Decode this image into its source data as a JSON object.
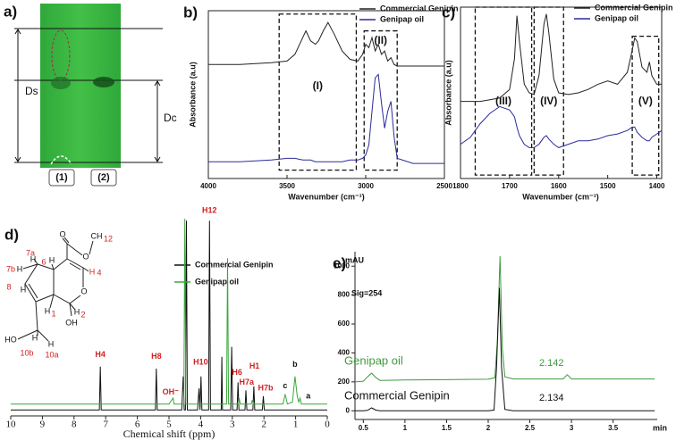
{
  "tlc": {
    "panel": "a)",
    "ds": "Ds",
    "dc": "Dc",
    "lanes": [
      "(1)",
      "(2)"
    ]
  },
  "structure": {
    "labels": [
      "O",
      "O",
      "CH",
      "12",
      "6",
      "H",
      "H",
      "4",
      "7a",
      "H",
      "7b",
      "H",
      "8",
      "H",
      "H",
      "1",
      "O",
      "H",
      "2",
      "OH",
      "HO",
      "H",
      "10b",
      "H",
      "10a"
    ]
  },
  "chart_data": [
    {
      "type": "line",
      "panel": "b)",
      "xlabel": "Wavenumber (cm⁻¹)",
      "ylabel": "Absorbance (a.u)",
      "xlim": [
        4000,
        2500
      ],
      "xticks": [
        4000,
        3500,
        3000,
        2500
      ],
      "ylim": [
        0,
        100
      ],
      "axes": "box",
      "series": [
        {
          "name": "Commercial Genipin",
          "color": "#222222",
          "x": [
            4000,
            3800,
            3600,
            3500,
            3450,
            3400,
            3380,
            3350,
            3320,
            3300,
            3270,
            3240,
            3200,
            3150,
            3100,
            3050,
            3020,
            3000,
            2980,
            2960,
            2940,
            2920,
            2900,
            2880,
            2860,
            2840,
            2820,
            2800,
            2700,
            2600,
            2500
          ],
          "values": [
            68,
            68,
            69,
            70,
            74,
            84,
            88,
            82,
            80,
            82,
            88,
            93,
            86,
            76,
            71,
            70,
            74,
            80,
            78,
            84,
            76,
            80,
            74,
            76,
            70,
            72,
            68,
            67,
            67,
            67,
            67
          ]
        },
        {
          "name": "Genipap oil",
          "color": "#2b2b9a",
          "x": [
            4000,
            3800,
            3600,
            3500,
            3450,
            3400,
            3380,
            3350,
            3320,
            3300,
            3270,
            3240,
            3200,
            3150,
            3100,
            3050,
            3020,
            3000,
            2980,
            2960,
            2940,
            2920,
            2900,
            2880,
            2860,
            2840,
            2820,
            2800,
            2700,
            2600,
            2500
          ],
          "values": [
            10,
            10,
            11,
            12,
            12,
            11,
            11,
            11,
            10,
            10,
            10,
            10,
            10,
            10,
            11,
            11,
            12,
            14,
            20,
            40,
            60,
            62,
            45,
            30,
            40,
            46,
            25,
            12,
            9,
            9,
            9
          ]
        }
      ],
      "regions": [
        {
          "label": "(I)",
          "from": 3550,
          "to": 3060,
          "top": 98,
          "bottom": 5,
          "label_y": 55
        },
        {
          "label": "(II)",
          "from": 3010,
          "to": 2800,
          "top": 88,
          "bottom": 5,
          "label_y": 82
        }
      ]
    },
    {
      "type": "line",
      "panel": "c)",
      "xlabel": "Wavenumber (cm⁻¹)",
      "ylabel": "Absorbance (a.u)",
      "xlim": [
        1800,
        1390
      ],
      "xticks": [
        1800,
        1700,
        1600,
        1500,
        1400
      ],
      "ylim": [
        0,
        100
      ],
      "axes": "box",
      "series": [
        {
          "name": "Commercial Genipin",
          "color": "#222222",
          "x": [
            1800,
            1780,
            1760,
            1740,
            1720,
            1700,
            1690,
            1685,
            1680,
            1670,
            1660,
            1650,
            1640,
            1630,
            1625,
            1620,
            1610,
            1600,
            1580,
            1560,
            1540,
            1520,
            1500,
            1480,
            1460,
            1450,
            1445,
            1440,
            1430,
            1420,
            1415,
            1410,
            1400,
            1390
          ],
          "values": [
            45,
            45,
            45,
            46,
            47,
            52,
            70,
            95,
            80,
            55,
            50,
            49,
            60,
            90,
            96,
            85,
            58,
            50,
            49,
            50,
            52,
            55,
            57,
            55,
            62,
            75,
            82,
            80,
            65,
            62,
            68,
            60,
            55,
            55
          ]
        },
        {
          "name": "Genipap oil",
          "color": "#2b2b9a",
          "x": [
            1800,
            1780,
            1760,
            1740,
            1720,
            1700,
            1690,
            1685,
            1680,
            1670,
            1660,
            1650,
            1640,
            1630,
            1625,
            1620,
            1610,
            1600,
            1580,
            1560,
            1540,
            1520,
            1500,
            1480,
            1460,
            1450,
            1445,
            1440,
            1430,
            1420,
            1415,
            1410,
            1400,
            1390
          ],
          "values": [
            20,
            24,
            32,
            38,
            42,
            40,
            36,
            30,
            25,
            20,
            18,
            18,
            20,
            24,
            25,
            23,
            20,
            18,
            20,
            22,
            22,
            23,
            25,
            26,
            28,
            30,
            30,
            27,
            24,
            22,
            22,
            24,
            26,
            28
          ]
        }
      ],
      "regions": [
        {
          "label": "(III)",
          "from": 1770,
          "to": 1655,
          "top": 100,
          "bottom": 2,
          "label_y": 45
        },
        {
          "label": "(IV)",
          "from": 1650,
          "to": 1590,
          "top": 100,
          "bottom": 2,
          "label_y": 45
        },
        {
          "label": "(V)",
          "from": 1450,
          "to": 1396,
          "top": 83,
          "bottom": 2,
          "label_y": 45
        }
      ]
    },
    {
      "type": "line",
      "panel": "d)",
      "xlabel": "Chemical shift (ppm)",
      "xlim": [
        10,
        0
      ],
      "xticks": [
        10,
        9,
        8,
        7,
        6,
        5,
        4,
        3,
        2,
        1,
        0
      ],
      "ylim": [
        0,
        100
      ],
      "axes": "bottom",
      "series": [
        {
          "name": "Commercial Genipin",
          "color": "#111111",
          "x": [
            10,
            8,
            7.2,
            7.17,
            7.14,
            6,
            5.43,
            5.4,
            5.37,
            4.6,
            4.55,
            4.52,
            4.48,
            4.45,
            4.42,
            4.1,
            4.05,
            4.02,
            3.99,
            3.96,
            3.93,
            3.75,
            3.72,
            3.69,
            3.5,
            3.35,
            3.33,
            3.31,
            3.05,
            3.02,
            2.99,
            2.85,
            2.82,
            2.79,
            2.6,
            2.57,
            2.54,
            2.35,
            2.32,
            2.29,
            2.05,
            2.02,
            1.99,
            1,
            0
          ],
          "values": [
            3,
            3,
            3,
            25,
            3,
            3,
            3,
            24,
            3,
            3,
            20,
            3,
            3,
            99,
            3,
            3,
            14,
            3,
            20,
            3,
            3,
            3,
            99,
            3,
            3,
            3,
            30,
            3,
            3,
            35,
            3,
            3,
            17,
            3,
            3,
            13,
            3,
            3,
            15,
            3,
            3,
            10,
            3,
            3,
            3
          ]
        },
        {
          "name": "Genipap oil",
          "color": "#3aa83a",
          "x": [
            10,
            7.2,
            5.0,
            4.87,
            4.84,
            4.6,
            4.53,
            4.5,
            4.47,
            3.3,
            3.18,
            3.15,
            3.12,
            2.8,
            2.78,
            2.75,
            2.4,
            2.37,
            2.34,
            1.4,
            1.33,
            1.26,
            1.1,
            1.02,
            0.95,
            0.9,
            0.86,
            0.82,
            0.5,
            0
          ],
          "values": [
            6,
            6,
            6,
            9,
            6,
            6,
            6,
            100,
            6,
            6,
            6,
            80,
            6,
            6,
            9,
            6,
            6,
            8,
            6,
            6,
            11,
            6,
            7,
            20,
            10,
            7,
            9,
            6,
            6,
            6
          ]
        }
      ],
      "annotations": [
        {
          "text": "H4",
          "x": 7.17,
          "y": 31,
          "color": "#d42020"
        },
        {
          "text": "H8",
          "x": 5.4,
          "y": 30,
          "color": "#d42020"
        },
        {
          "text": "OH⁻",
          "x": 4.95,
          "y": 12,
          "color": "#d42020"
        },
        {
          "text": "H10",
          "x": 4.0,
          "y": 27,
          "color": "#d42020"
        },
        {
          "text": "H12",
          "x": 3.72,
          "y": 104,
          "color": "#d42020"
        },
        {
          "text": "H6",
          "x": 2.85,
          "y": 22,
          "color": "#d42020"
        },
        {
          "text": "H7a",
          "x": 2.55,
          "y": 17,
          "color": "#d42020"
        },
        {
          "text": "H1",
          "x": 2.3,
          "y": 25,
          "color": "#d42020"
        },
        {
          "text": "H7b",
          "x": 1.95,
          "y": 14,
          "color": "#d42020"
        },
        {
          "text": "c",
          "x": 1.33,
          "y": 15,
          "color": "#111111"
        },
        {
          "text": "b",
          "x": 1.02,
          "y": 26,
          "color": "#111111"
        },
        {
          "text": "a",
          "x": 0.6,
          "y": 10,
          "color": "#111111"
        }
      ]
    },
    {
      "type": "line",
      "panel": "e)",
      "xlabel": "min",
      "ylabel": "mAU",
      "annotation": "Sig=254",
      "xlim": [
        0.4,
        4.03
      ],
      "xticks": [
        0.5,
        1,
        1.5,
        2,
        2.5,
        3,
        3.5
      ],
      "ylim": [
        -60,
        1100
      ],
      "yticks": [
        0,
        200,
        400,
        600,
        800,
        1000
      ],
      "axes": "left-bottom",
      "series": [
        {
          "name": "Genipap oil",
          "color": "#3f9a3f",
          "retention_time": 2.142,
          "x": [
            0.4,
            0.5,
            0.55,
            0.6,
            0.65,
            0.7,
            1.0,
            1.5,
            2.0,
            2.08,
            2.11,
            2.142,
            2.17,
            2.2,
            2.3,
            2.9,
            2.95,
            3.0,
            3.5,
            4.0
          ],
          "values": [
            200,
            205,
            235,
            260,
            230,
            210,
            213,
            215,
            218,
            228,
            480,
            1070,
            430,
            235,
            220,
            220,
            250,
            220,
            220,
            220
          ]
        },
        {
          "name": "Commercial Genipin",
          "color": "#111111",
          "retention_time": 2.134,
          "x": [
            0.4,
            0.5,
            0.55,
            0.6,
            0.65,
            0.7,
            1.0,
            1.5,
            2.0,
            2.07,
            2.1,
            2.134,
            2.16,
            2.2,
            2.3,
            3.0,
            4.0
          ],
          "values": [
            0,
            0,
            3,
            20,
            5,
            0,
            0,
            0,
            0,
            5,
            300,
            850,
            300,
            10,
            0,
            0,
            0
          ]
        }
      ]
    }
  ]
}
